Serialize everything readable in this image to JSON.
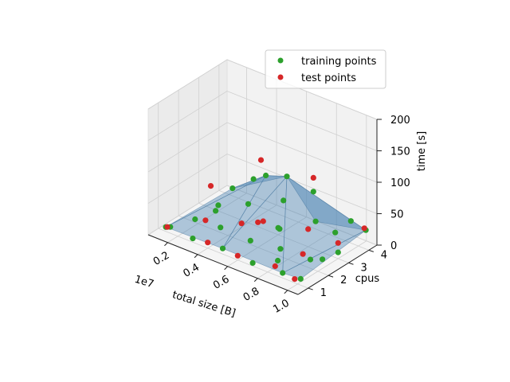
{
  "chart_data": {
    "type": "scatter",
    "projection": "3d",
    "xlabel": "total size [B]",
    "ylabel": "cpus",
    "zlabel": "time [s]",
    "x_offset_label": "1e7",
    "x_ticks": [
      "0.2",
      "0.4",
      "0.6",
      "0.8",
      "1.0"
    ],
    "y_ticks": [
      "1",
      "2",
      "3",
      "4"
    ],
    "z_ticks": [
      "0",
      "50",
      "100",
      "150",
      "200"
    ],
    "xlim": [
      0.07,
      1.07
    ],
    "ylim": [
      0.5,
      4.4
    ],
    "zlim": [
      0,
      200
    ],
    "grid": true,
    "legend_position": "top-right",
    "colors": {
      "training": "#2ca02c",
      "test": "#d62728",
      "surface": "#4a83b3"
    },
    "series": [
      {
        "name": "training points",
        "points": [
          [
            0.12,
            1,
            7
          ],
          [
            0.15,
            1,
            10
          ],
          [
            0.3,
            1,
            6
          ],
          [
            0.5,
            1,
            9
          ],
          [
            0.7,
            1,
            5
          ],
          [
            0.9,
            1,
            8
          ],
          [
            1.02,
            1,
            10
          ],
          [
            0.18,
            2,
            5
          ],
          [
            0.35,
            2,
            8
          ],
          [
            0.55,
            2,
            6
          ],
          [
            0.75,
            2,
            12
          ],
          [
            0.95,
            2,
            14
          ],
          [
            1.03,
            2,
            22
          ],
          [
            0.2,
            3,
            9
          ],
          [
            0.4,
            3,
            30
          ],
          [
            0.6,
            3,
            11
          ],
          [
            0.85,
            3,
            45
          ],
          [
            1.0,
            3,
            10
          ],
          [
            0.16,
            4,
            12
          ],
          [
            0.3,
            4,
            40
          ],
          [
            0.5,
            4,
            25
          ],
          [
            0.7,
            4,
            58
          ],
          [
            0.95,
            4,
            35
          ],
          [
            1.05,
            4,
            30
          ],
          [
            0.45,
            3.5,
            70
          ],
          [
            0.55,
            3.8,
            72
          ],
          [
            0.65,
            2.7,
            20
          ],
          [
            0.25,
            2.5,
            15
          ],
          [
            0.8,
            1.5,
            8
          ],
          [
            0.9,
            3.6,
            20
          ]
        ]
      },
      {
        "name": "test points",
        "points": [
          [
            0.13,
            1,
            8
          ],
          [
            0.4,
            1,
            9
          ],
          [
            0.6,
            1,
            7
          ],
          [
            0.85,
            1,
            14
          ],
          [
            0.98,
            1,
            6
          ],
          [
            0.25,
            2,
            10
          ],
          [
            0.6,
            2,
            40
          ],
          [
            0.9,
            2,
            18
          ],
          [
            0.15,
            3,
            35
          ],
          [
            0.5,
            3,
            12
          ],
          [
            0.8,
            3,
            28
          ],
          [
            1.0,
            3,
            25
          ],
          [
            0.35,
            4,
            75
          ],
          [
            0.7,
            4,
            80
          ],
          [
            1.04,
            4,
            32
          ],
          [
            0.45,
            2.3,
            18
          ]
        ]
      }
    ]
  }
}
